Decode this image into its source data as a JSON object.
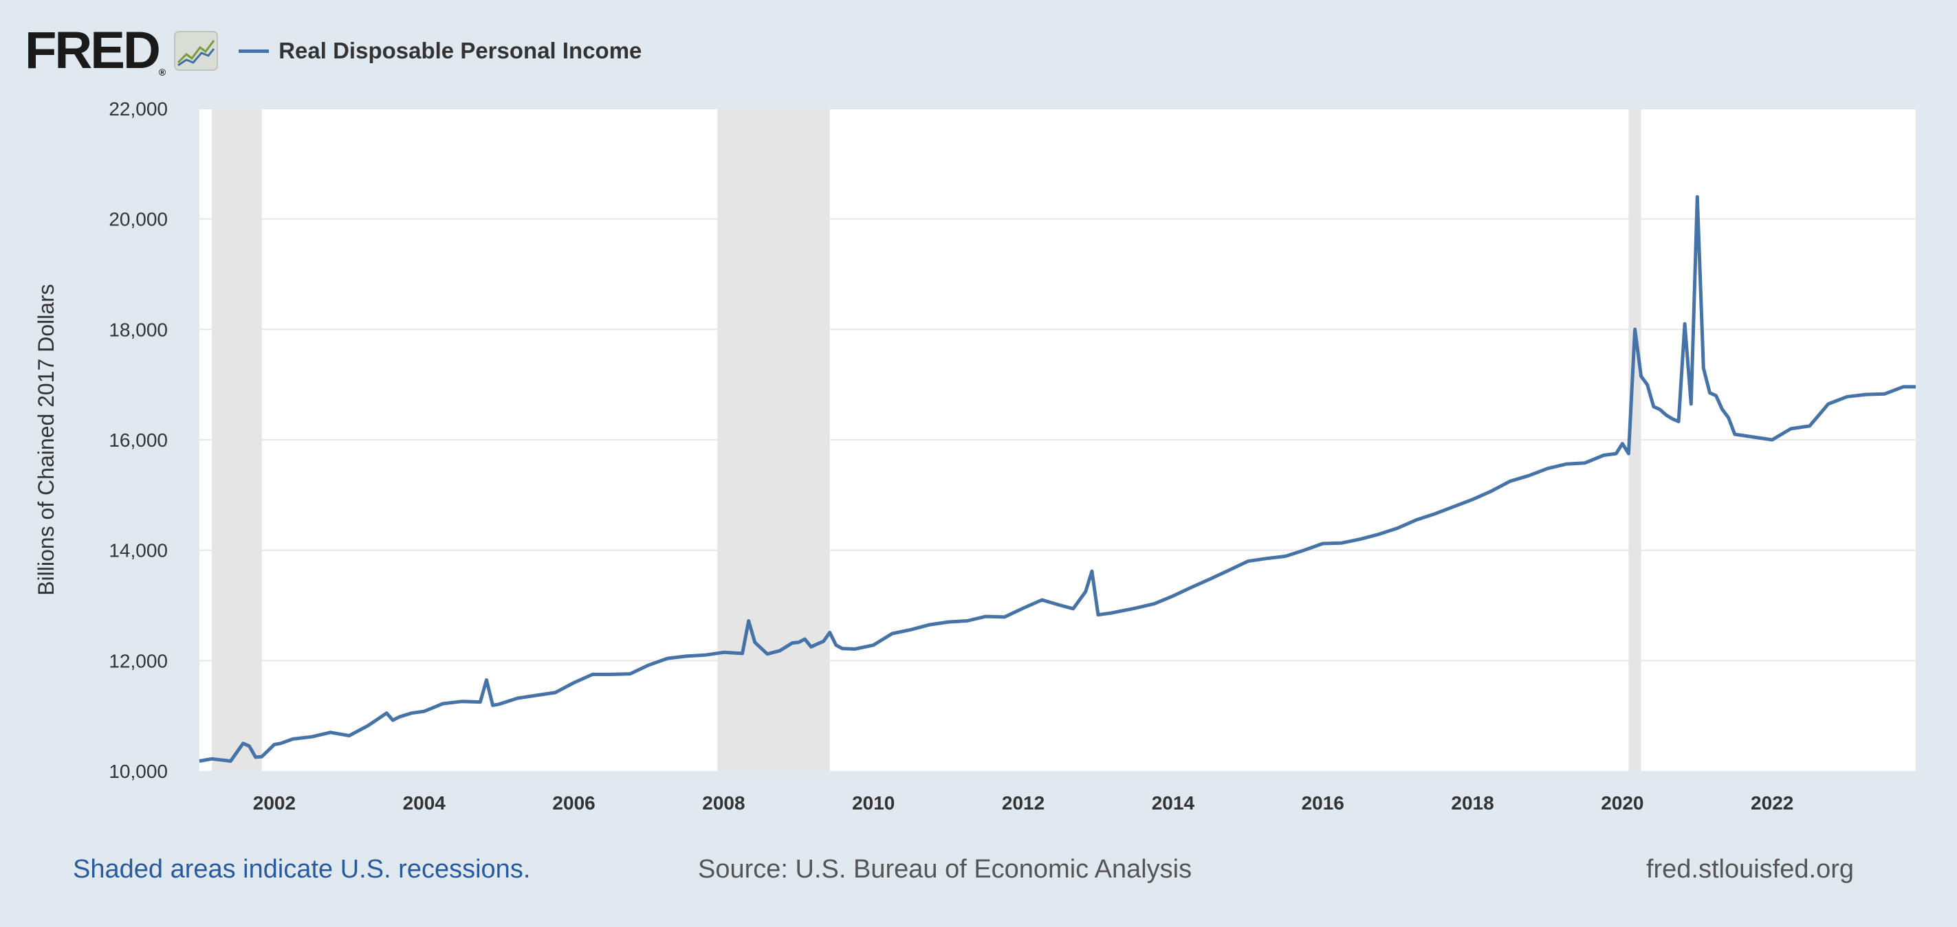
{
  "header": {
    "logo_text": "FRED",
    "logo_mark": "®",
    "logo_icon": "line-graph-icon",
    "legend_label": "Real Disposable Personal Income"
  },
  "footer": {
    "recession_note": "Shaded areas indicate U.S. recessions.",
    "source": "Source: U.S. Bureau of Economic Analysis",
    "site": "fred.stlouisfed.org"
  },
  "colors": {
    "series": "#4572a7",
    "background": "#e1e9f0",
    "plot": "#ffffff",
    "recession": "#e5e5e5",
    "grid": "#e6e6e6"
  },
  "chart_data": {
    "type": "line",
    "title": "",
    "xlabel": "",
    "ylabel": "Billions of Chained 2017 Dollars",
    "xlim": [
      2001.0,
      2023.917
    ],
    "ylim": [
      10000,
      22000
    ],
    "yticks": [
      10000,
      12000,
      14000,
      16000,
      18000,
      20000,
      22000
    ],
    "ytick_labels": [
      "10,000",
      "12,000",
      "14,000",
      "16,000",
      "18,000",
      "20,000",
      "22,000"
    ],
    "xticks": [
      2002,
      2004,
      2006,
      2008,
      2010,
      2012,
      2014,
      2016,
      2018,
      2020,
      2022
    ],
    "xtick_labels": [
      "2002",
      "2004",
      "2006",
      "2008",
      "2010",
      "2012",
      "2014",
      "2016",
      "2018",
      "2020",
      "2022"
    ],
    "recessions": [
      [
        2001.167,
        2001.833
      ],
      [
        2007.917,
        2009.417
      ],
      [
        2020.083,
        2020.25
      ]
    ],
    "series": [
      {
        "name": "Real Disposable Personal Income",
        "x": [
          2001.0,
          2001.167,
          2001.417,
          2001.583,
          2001.667,
          2001.75,
          2001.833,
          2002.0,
          2002.083,
          2002.25,
          2002.5,
          2002.75,
          2003.0,
          2003.25,
          2003.5,
          2003.583,
          2003.667,
          2003.833,
          2004.0,
          2004.25,
          2004.5,
          2004.75,
          2004.833,
          2004.917,
          2005.0,
          2005.25,
          2005.5,
          2005.75,
          2006.0,
          2006.25,
          2006.5,
          2006.75,
          2007.0,
          2007.25,
          2007.5,
          2007.75,
          2008.0,
          2008.25,
          2008.333,
          2008.417,
          2008.583,
          2008.75,
          2008.917,
          2009.0,
          2009.083,
          2009.167,
          2009.25,
          2009.333,
          2009.417,
          2009.5,
          2009.583,
          2009.75,
          2010.0,
          2010.25,
          2010.5,
          2010.75,
          2011.0,
          2011.25,
          2011.5,
          2011.75,
          2012.0,
          2012.25,
          2012.5,
          2012.667,
          2012.833,
          2012.917,
          2013.0,
          2013.167,
          2013.5,
          2013.75,
          2014.0,
          2014.25,
          2014.5,
          2014.75,
          2015.0,
          2015.25,
          2015.5,
          2015.75,
          2016.0,
          2016.25,
          2016.5,
          2016.75,
          2017.0,
          2017.25,
          2017.5,
          2017.75,
          2018.0,
          2018.25,
          2018.5,
          2018.75,
          2019.0,
          2019.25,
          2019.5,
          2019.75,
          2019.917,
          2020.0,
          2020.083,
          2020.167,
          2020.25,
          2020.333,
          2020.417,
          2020.5,
          2020.583,
          2020.667,
          2020.75,
          2020.833,
          2020.917,
          2021.0,
          2021.083,
          2021.167,
          2021.25,
          2021.333,
          2021.417,
          2021.5,
          2021.75,
          2022.0,
          2022.25,
          2022.5,
          2022.75,
          2023.0,
          2023.25,
          2023.5,
          2023.75,
          2023.917
        ],
        "values": [
          10180,
          10220,
          10180,
          10500,
          10450,
          10250,
          10260,
          10480,
          10500,
          10580,
          10620,
          10700,
          10640,
          10820,
          11050,
          10920,
          10980,
          11050,
          11080,
          11220,
          11260,
          11250,
          11650,
          11190,
          11210,
          11320,
          11370,
          11420,
          11600,
          11750,
          11750,
          11760,
          11920,
          12040,
          12080,
          12100,
          12150,
          12130,
          12720,
          12330,
          12120,
          12180,
          12320,
          12330,
          12390,
          12250,
          12300,
          12350,
          12510,
          12280,
          12220,
          12210,
          12280,
          12490,
          12560,
          12650,
          12700,
          12720,
          12800,
          12790,
          12950,
          13100,
          13000,
          12940,
          13250,
          13620,
          12830,
          12860,
          12950,
          13030,
          13170,
          13330,
          13480,
          13640,
          13800,
          13850,
          13890,
          14000,
          14120,
          14130,
          14200,
          14290,
          14400,
          14550,
          14660,
          14790,
          14920,
          15070,
          15250,
          15350,
          15480,
          15560,
          15580,
          15720,
          15750,
          15930,
          15750,
          18000,
          17150,
          17000,
          16600,
          16550,
          16450,
          16380,
          16330,
          18100,
          16650,
          20400,
          17300,
          16850,
          16800,
          16550,
          16400,
          16100,
          16050,
          16000,
          16200,
          16250,
          16650,
          16780,
          16820,
          16830,
          16960,
          16960
        ]
      }
    ]
  }
}
